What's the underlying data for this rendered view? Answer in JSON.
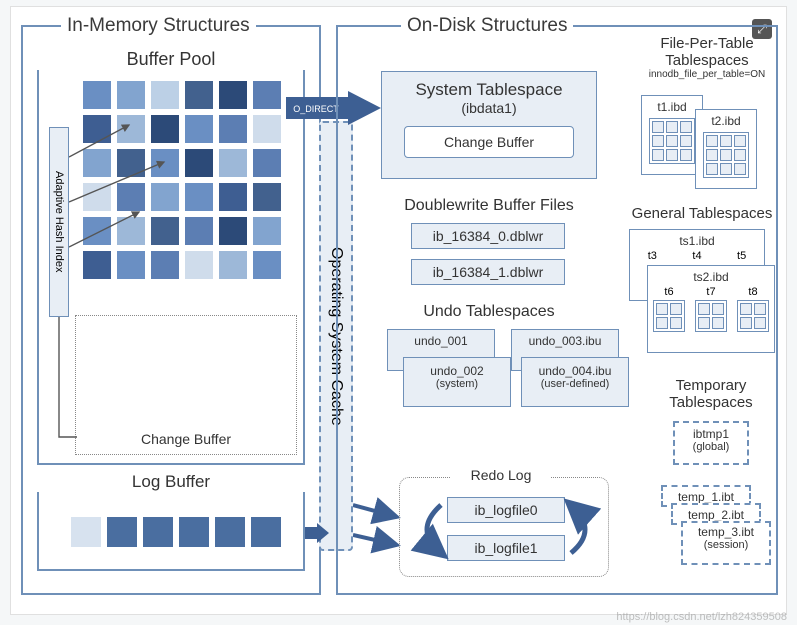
{
  "left": {
    "title": "In-Memory Structures",
    "buffer_pool": {
      "title": "Buffer Pool",
      "grid": {
        "rows": 6,
        "cols": 6,
        "cell": 28,
        "gap": 6
      },
      "colors": [
        [
          "#6a8fc3",
          "#82a4cf",
          "#bcd0e6",
          "#42618e",
          "#2c4a78",
          "#5c7eb3"
        ],
        [
          "#3e5e92",
          "#9db8d8",
          "#2c4a78",
          "#6a8fc3",
          "#5c7eb3",
          "#cfdceb"
        ],
        [
          "#82a4cf",
          "#42618e",
          "#6a8fc3",
          "#2c4a78",
          "#9db8d8",
          "#5c7eb3"
        ],
        [
          "#cfdceb",
          "#5c7eb3",
          "#82a4cf",
          "#6a8fc3",
          "#3e5e92",
          "#42618e"
        ],
        [
          "#6a8fc3",
          "#9db8d8",
          "#42618e",
          "#5c7eb3",
          "#2c4a78",
          "#82a4cf"
        ],
        [
          "#3e5e92",
          "#6a8fc3",
          "#5c7eb3",
          "#cfdceb",
          "#9db8d8",
          "#6a8fc3"
        ]
      ],
      "adaptive_hash": "Adaptive Hash Index",
      "change_buffer_label": "Change Buffer"
    },
    "log_buffer": {
      "title": "Log Buffer",
      "colors": [
        "#d7e2ef",
        "#4a6ea0",
        "#4a6ea0",
        "#4a6ea0",
        "#4a6ea0",
        "#4a6ea0"
      ]
    }
  },
  "middle": {
    "o_direct": "O_DIRECT",
    "os_cache": "Operating System Cache"
  },
  "right": {
    "title": "On-Disk Structures",
    "system_tablespace": {
      "title": "System Tablespace",
      "subtitle": "(ibdata1)",
      "change_buffer": "Change Buffer"
    },
    "doublewrite": {
      "title": "Doublewrite Buffer Files",
      "files": [
        "ib_16384_0.dblwr",
        "ib_16384_1.dblwr"
      ]
    },
    "undo": {
      "title": "Undo Tablespaces",
      "items": [
        "undo_001",
        "undo_002",
        "undo_003.ibu",
        "undo_004.ibu"
      ],
      "sub1": "(system)",
      "sub2": "(user-defined)"
    },
    "redo": {
      "title": "Redo Log",
      "files": [
        "ib_logfile0",
        "ib_logfile1"
      ]
    },
    "file_per_table": {
      "title": "File-Per-Table",
      "subtitle": "Tablespaces",
      "note": "innodb_file_per_table=ON",
      "tables": [
        "t1.ibd",
        "t2.ibd"
      ]
    },
    "general": {
      "title": "General Tablespaces",
      "ts1": {
        "name": "ts1.ibd",
        "tables": [
          "t3",
          "t4",
          "t5"
        ]
      },
      "ts2": {
        "name": "ts2.ibd",
        "tables": [
          "t6",
          "t7",
          "t8"
        ]
      }
    },
    "temporary": {
      "title": "Temporary",
      "subtitle": "Tablespaces",
      "global": "ibtmp1",
      "global_sub": "(global)",
      "sessions": [
        "temp_1.ibt",
        "temp_2.ibt",
        "temp_3.ibt"
      ],
      "session_sub": "(session)"
    }
  },
  "watermark": "https://blog.csdn.net/lzh824359508",
  "style": {
    "accent": "#6f90b8",
    "dark_arrow": "#3d5f93"
  }
}
